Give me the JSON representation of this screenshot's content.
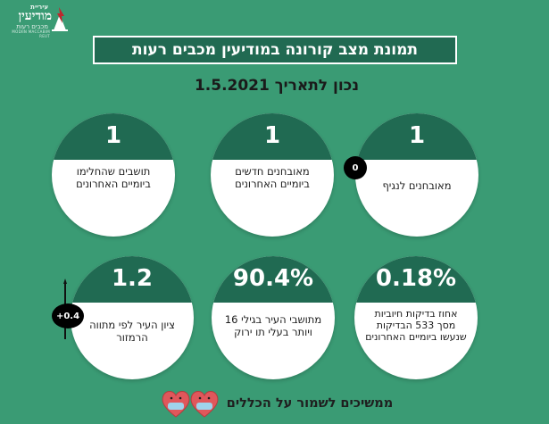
{
  "logo": {
    "top_line": "עיריית",
    "name": "מודיעין",
    "subtitle": "מכבים רעות",
    "tagline": "MODIIN MACCABIM REUT"
  },
  "header": {
    "title": "תמונת מצב קורונה במודיעין מכבים רעות",
    "date_line": "נכון לתאריך  1.5.2021"
  },
  "cards": [
    {
      "value": "1",
      "label": "תושבים שהחלימו ביומיים האחרונים"
    },
    {
      "value": "1",
      "label": "מאובחנים חדשים ביומיים האחרונים"
    },
    {
      "value": "1",
      "label": "מאובחנים לנגיף"
    },
    {
      "value": "1.2",
      "label": "ציון העיר לפי מתווה הרמזור"
    },
    {
      "value": "90.4%",
      "label": "מתושבי העיר בגילי 16 ויותר בעלי תו ירוק"
    },
    {
      "value": "0.18%",
      "label": "אחוז בדיקות חיוביות מסך 533 הבדיקות שנעשו ביומיים האחרונים"
    }
  ],
  "badges": {
    "infected_change": "0",
    "score_change": "+0.4"
  },
  "footer": {
    "text": "ממשיכים לשמור על הכללים"
  },
  "colors": {
    "background": "#3a9b74",
    "card_cap": "#206a52",
    "title_box": "#216a52"
  }
}
